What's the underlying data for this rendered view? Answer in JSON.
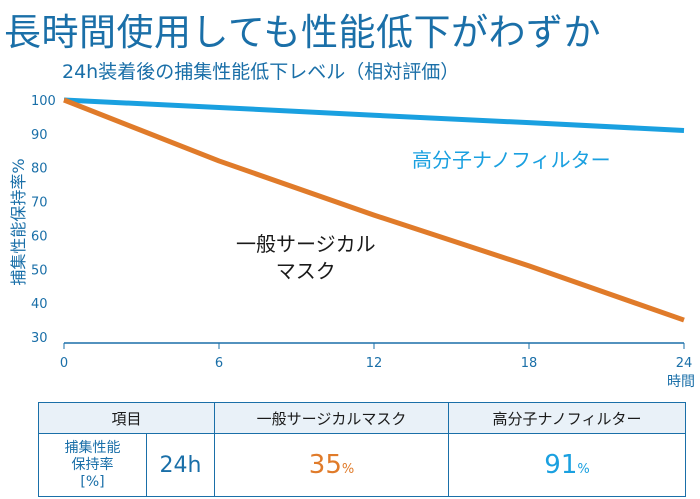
{
  "headline": "長時間使用しても性能低下がわずか",
  "chart_data": {
    "type": "line",
    "title": "24h装着後の捕集性能低下レベル（相対評価）",
    "ylabel": "捕集性能保持率%",
    "xunit": "時間",
    "x": [
      0,
      6,
      12,
      18,
      24
    ],
    "xlim": [
      0,
      24
    ],
    "ylim": [
      30,
      100
    ],
    "yticks": [
      100,
      90,
      80,
      70,
      60,
      50,
      40,
      30
    ],
    "grid": false,
    "series": [
      {
        "name": "高分子ナノフィルター",
        "color": "#1aa0e0",
        "values": [
          100,
          97.8,
          95.5,
          93.3,
          91
        ]
      },
      {
        "name": "一般サージカル\nマスク",
        "color": "#e07b2a",
        "values": [
          100,
          82,
          66,
          51,
          35
        ]
      }
    ],
    "annotations": {
      "blue_label": "高分子ナノフィルター",
      "orange_label_line1": "一般サージカル",
      "orange_label_line2": "マスク"
    }
  },
  "table": {
    "header_item": "項目",
    "header_col1": "一般サージカルマスク",
    "header_col2": "高分子ナノフィルター",
    "row_label_line1": "捕集性能",
    "row_label_line2": "保持率",
    "row_label_line3": "[%]",
    "row_hours": "24h",
    "val_col1": "35",
    "val_col2": "91",
    "pct_suffix": "%"
  },
  "colors": {
    "accent": "#1a6fa8",
    "blue": "#1aa0e0",
    "orange": "#e07b2a"
  }
}
